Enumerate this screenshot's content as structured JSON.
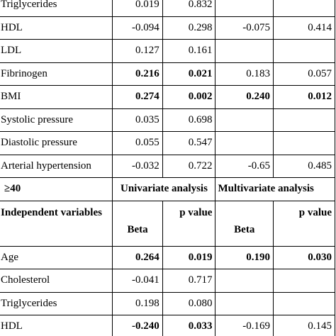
{
  "rows_top": [
    {
      "label": "Triglycerides",
      "beta": "0.019",
      "p": "0.832",
      "mbeta": "",
      "mp": "",
      "bold": false
    },
    {
      "label": "HDL",
      "beta": "-0.094",
      "p": "0.298",
      "mbeta": "-0.075",
      "mp": "0.414",
      "bold": false
    },
    {
      "label": "LDL",
      "beta": "0.127",
      "p": "0.161",
      "mbeta": "",
      "mp": "",
      "bold": false
    },
    {
      "label": "Fibrinogen",
      "beta": "0.216",
      "p": "0.021",
      "mbeta": "0.183",
      "mp": "0.057",
      "bold_uni": true
    },
    {
      "label": "BMI",
      "beta": "0.274",
      "p": "0.002",
      "mbeta": "0.240",
      "mp": "0.012",
      "bold_all": true
    },
    {
      "label": "Systolic pressure",
      "beta": "0.035",
      "p": "0.698",
      "mbeta": "",
      "mp": ""
    },
    {
      "label": "Diastolic pressure",
      "beta": "0.055",
      "p": "0.547",
      "mbeta": "",
      "mp": ""
    },
    {
      "label": "Arterial hypertension",
      "beta": "-0.032",
      "p": "0.722",
      "mbeta": "-0.65",
      "mp": "0.485"
    }
  ],
  "group_header": {
    "label": "≥40",
    "univariate": "Univariate analysis",
    "multivariate": "Multivariate analysis"
  },
  "sub_header": {
    "independent": "Independent variables",
    "beta": "Beta",
    "p_value": "p value",
    "mbeta": "Beta",
    "mp_value": "p value"
  },
  "rows_bottom": [
    {
      "label": "Age",
      "beta": "0.264",
      "p": "0.019",
      "mbeta": "0.190",
      "mp": "0.030"
    },
    {
      "label": "Cholesterol",
      "beta": "-0.041",
      "p": "0.717",
      "mbeta": "",
      "mp": ""
    },
    {
      "label": "Triglycerides",
      "beta": "0.198",
      "p": "0.080",
      "mbeta": "",
      "mp": ""
    },
    {
      "label": "HDL",
      "beta": "-0.240",
      "p": "0.033",
      "mbeta": "-0.169",
      "mp": "0.145"
    }
  ]
}
